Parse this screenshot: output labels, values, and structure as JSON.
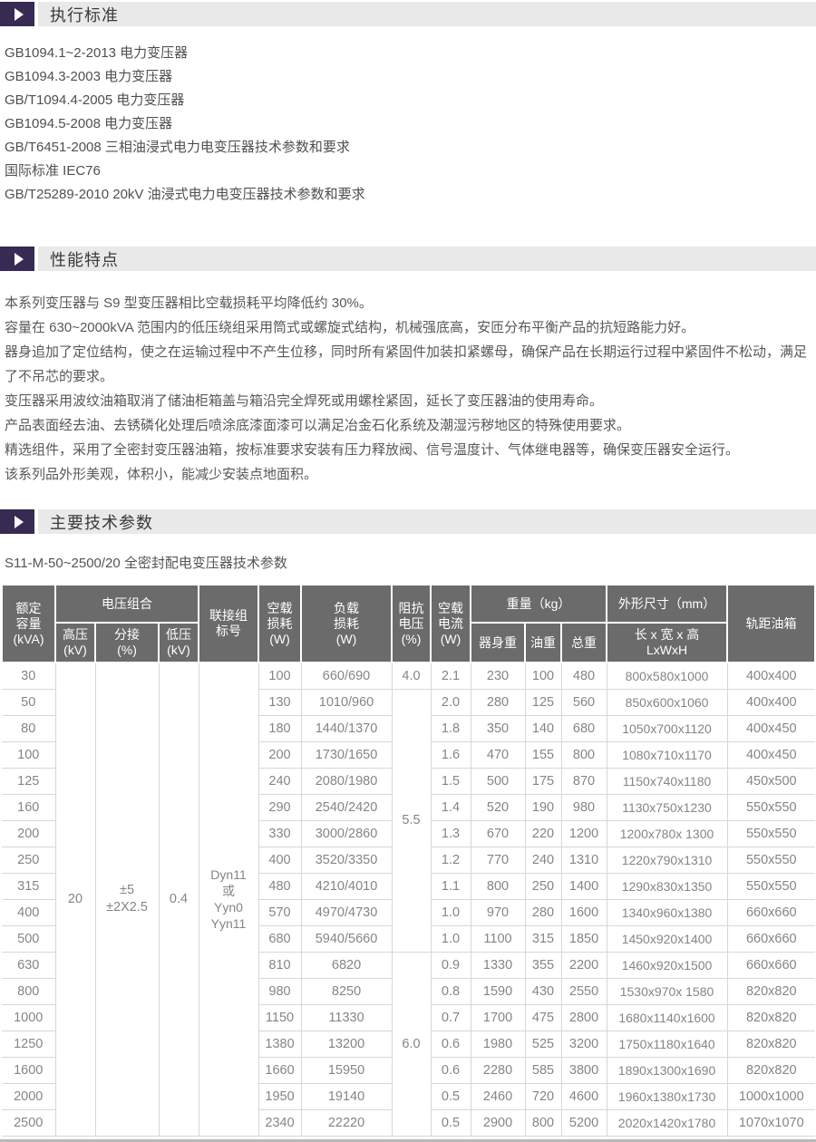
{
  "accent_color": "#372a53",
  "section_bar_color": "#e9e9e9",
  "table_header_color": "#6b6b6b",
  "sections": {
    "standards": {
      "title": "执行标准",
      "items": [
        "GB1094.1~2-2013 电力变压器",
        "GB1094.3-2003 电力变压器",
        "GB/T1094.4-2005 电力变压器",
        "GB1094.5-2008 电力变压器",
        "GB/T6451-2008 三相油浸式电力电变压器技术参数和要求",
        "国际标准 IEC76",
        "GB/T25289-2010 20kV 油浸式电力电变压器技术参数和要求"
      ]
    },
    "features": {
      "title": "性能特点",
      "paragraphs": [
        "本系列变压器与 S9 型变压器相比空载损耗平均降低约 30%。",
        "容量在 630~2000kVA 范围内的低压绕组采用筒式或螺旋式结构，机械强底高，安匝分布平衡产品的抗短路能力好。",
        "器身追加了定位结构，使之在运输过程中不产生位移，同时所有紧固件加装扣紧螺母，确保产品在长期运行过程中紧固件不松动，满足了不吊芯的要求。",
        "变压器采用波纹油箱取消了储油柜箱盖与箱沿完全焊死或用螺栓紧固，延长了变压器油的使用寿命。",
        "产品表面经去油、去锈磷化处理后喷涂底漆面漆可以满足冶金石化系统及潮湿污秽地区的特殊使用要求。",
        "精选组件，采用了全密封变压器油箱，按标准要求安装有压力释放阀、信号温度计、气体继电器等，确保变压器安全运行。",
        "该系列品外形美观，体积小，能减少安装点地面积。"
      ]
    },
    "parameters": {
      "title": "主要技术参数",
      "subtitle": "S11-M-50~2500/20 全密封配电变压器技术参数"
    }
  },
  "table": {
    "header": {
      "rated": "额定\n容量\n(kVA)",
      "voltage_combo": "电压组合",
      "hv": "高压\n(kV)",
      "tap": "分接\n(%)",
      "lv": "低压\n(kV)",
      "vector": "联接组\n标号",
      "no_load_loss": "空载\n损耗\n(W)",
      "load_loss": "负载\n损耗\n(W)",
      "impedance": "阻抗\n电压\n(%)",
      "no_load_current": "空载\n电流\n(W)",
      "weight": "重量（kg）",
      "body_weight": "器身重",
      "oil_weight": "油重",
      "total_weight": "总重",
      "dims": "外形尺寸（mm）",
      "lwh": "长 x 宽 x 高\nLxWxH",
      "track": "轨距油箱"
    },
    "merged": {
      "hv": "20",
      "tap": "±5\n±2X2.5",
      "lv": "0.4",
      "vector": "Dyn11\n或\nYyn0\nYyn11"
    },
    "impedance_cells": {
      "0": {
        "value": "4.0",
        "span": 1
      },
      "1": {
        "value": "5.5",
        "span": 10
      },
      "11": {
        "value": "6.0",
        "span": 7
      }
    },
    "rows": [
      [
        "30",
        "100",
        "660/690",
        "2.1",
        "230",
        "100",
        "480",
        "800x580x1000",
        "400x400"
      ],
      [
        "50",
        "130",
        "1010/960",
        "2.0",
        "280",
        "125",
        "560",
        "850x600x1060",
        "400x400"
      ],
      [
        "80",
        "180",
        "1440/1370",
        "1.8",
        "350",
        "140",
        "680",
        "1050x700x1120",
        "400x450"
      ],
      [
        "100",
        "200",
        "1730/1650",
        "1.6",
        "470",
        "155",
        "800",
        "1080x710x1170",
        "400x450"
      ],
      [
        "125",
        "240",
        "2080/1980",
        "1.5",
        "500",
        "175",
        "870",
        "1150x740x1180",
        "450x500"
      ],
      [
        "160",
        "290",
        "2540/2420",
        "1.4",
        "520",
        "190",
        "980",
        "1130x750x1230",
        "550x550"
      ],
      [
        "200",
        "330",
        "3000/2860",
        "1.3",
        "670",
        "220",
        "1200",
        "1200x780x 1300",
        "550x550"
      ],
      [
        "250",
        "400",
        "3520/3350",
        "1.2",
        "770",
        "240",
        "1310",
        "1220x790x1310",
        "550x550"
      ],
      [
        "315",
        "480",
        "4210/4010",
        "1.1",
        "800",
        "250",
        "1400",
        "1290x830x1350",
        "550x550"
      ],
      [
        "400",
        "570",
        "4970/4730",
        "1.0",
        "970",
        "280",
        "1600",
        "1340x960x1380",
        "660x660"
      ],
      [
        "500",
        "680",
        "5940/5660",
        "1.0",
        "1100",
        "315",
        "1850",
        "1450x920x1400",
        "660x660"
      ],
      [
        "630",
        "810",
        "6820",
        "0.9",
        "1330",
        "355",
        "2200",
        "1460x920x1500",
        "660x660"
      ],
      [
        "800",
        "980",
        "8250",
        "0.8",
        "1590",
        "430",
        "2550",
        "1530x970x 1580",
        "820x820"
      ],
      [
        "1000",
        "1150",
        "11330",
        "0.7",
        "1700",
        "475",
        "2800",
        "1680x1140x1600",
        "820x820"
      ],
      [
        "1250",
        "1380",
        "13200",
        "0.6",
        "1980",
        "525",
        "3200",
        "1750x1180x1640",
        "820x820"
      ],
      [
        "1600",
        "1660",
        "15950",
        "0.6",
        "2280",
        "585",
        "3800",
        "1890x1300x1690",
        "820x820"
      ],
      [
        "2000",
        "1950",
        "19140",
        "0.5",
        "2460",
        "720",
        "4600",
        "1960x1380x1730",
        "1000x1000"
      ],
      [
        "2500",
        "2340",
        "22220",
        "0.5",
        "2900",
        "800",
        "5200",
        "2020x1420x1780",
        "1070x1070"
      ]
    ]
  }
}
